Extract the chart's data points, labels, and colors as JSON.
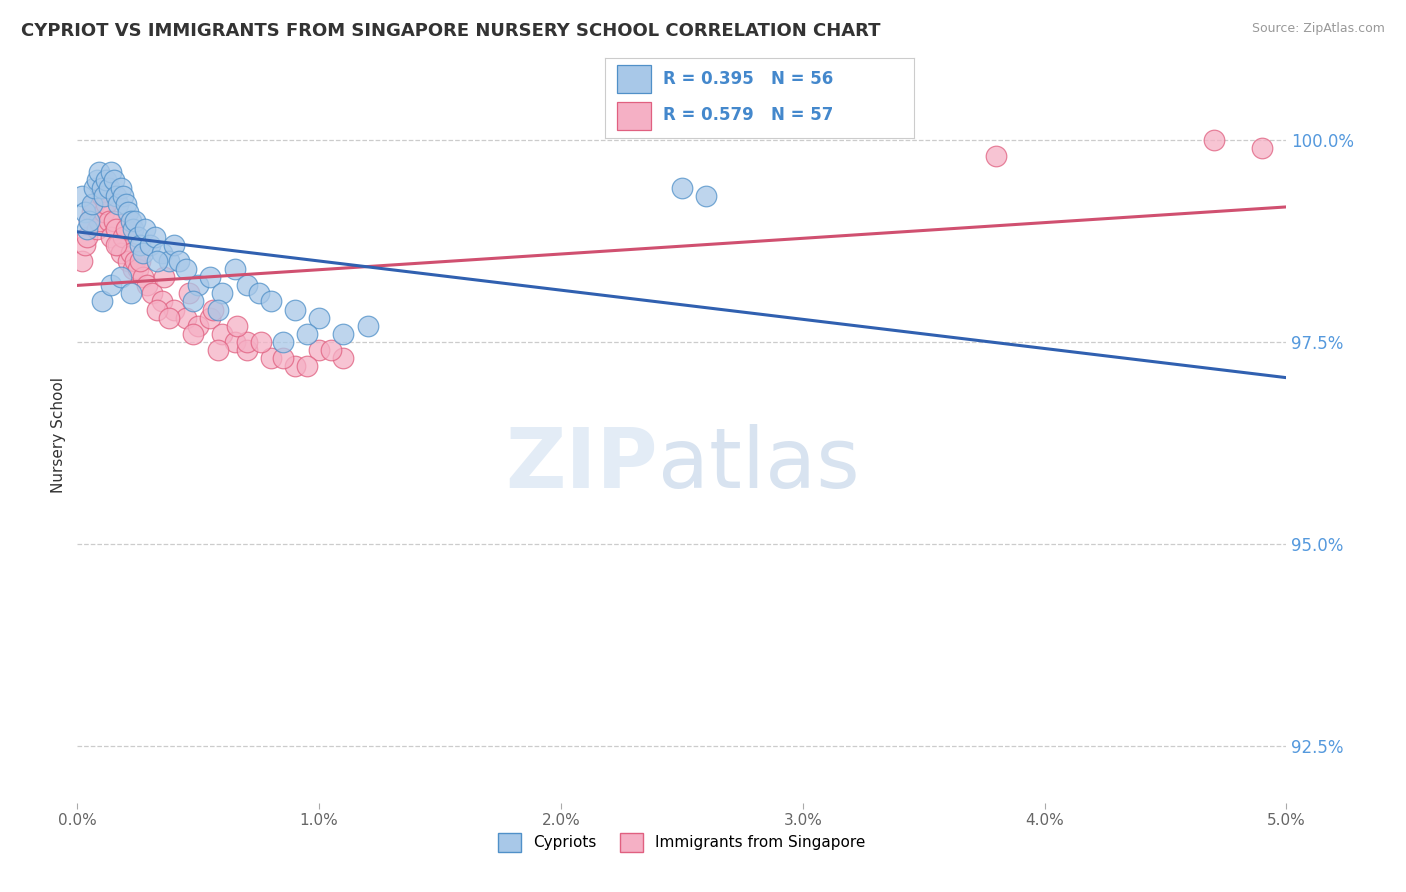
{
  "title": "CYPRIOT VS IMMIGRANTS FROM SINGAPORE NURSERY SCHOOL CORRELATION CHART",
  "source": "Source: ZipAtlas.com",
  "ylabel": "Nursery School",
  "y_ticks": [
    92.5,
    95.0,
    97.5,
    100.0
  ],
  "y_tick_labels": [
    "92.5%",
    "95.0%",
    "97.5%",
    "100.0%"
  ],
  "xmin": 0.0,
  "xmax": 5.0,
  "ymin": 91.8,
  "ymax": 100.9,
  "cypriot_color": "#a8c8e8",
  "singapore_color": "#f5b0c5",
  "cypriot_edge_color": "#5090c8",
  "singapore_edge_color": "#e06080",
  "cypriot_line_color": "#3060b0",
  "singapore_line_color": "#d05070",
  "R_cypriot": 0.395,
  "N_cypriot": 56,
  "R_singapore": 0.579,
  "N_singapore": 57,
  "legend_label_cypriot": "Cypriots",
  "legend_label_singapore": "Immigrants from Singapore",
  "cypriot_x": [
    0.02,
    0.03,
    0.04,
    0.05,
    0.06,
    0.07,
    0.08,
    0.09,
    0.1,
    0.11,
    0.12,
    0.13,
    0.14,
    0.15,
    0.16,
    0.17,
    0.18,
    0.19,
    0.2,
    0.21,
    0.22,
    0.23,
    0.24,
    0.25,
    0.26,
    0.27,
    0.28,
    0.3,
    0.32,
    0.35,
    0.38,
    0.4,
    0.42,
    0.45,
    0.5,
    0.55,
    0.6,
    0.65,
    0.7,
    0.75,
    0.8,
    0.9,
    1.0,
    1.1,
    1.2,
    0.1,
    0.14,
    0.18,
    0.22,
    0.33,
    0.48,
    0.58,
    0.85,
    0.95,
    2.5,
    2.6
  ],
  "cypriot_y": [
    99.3,
    99.1,
    98.9,
    99.0,
    99.2,
    99.4,
    99.5,
    99.6,
    99.4,
    99.3,
    99.5,
    99.4,
    99.6,
    99.5,
    99.3,
    99.2,
    99.4,
    99.3,
    99.2,
    99.1,
    99.0,
    98.9,
    99.0,
    98.8,
    98.7,
    98.6,
    98.9,
    98.7,
    98.8,
    98.6,
    98.5,
    98.7,
    98.5,
    98.4,
    98.2,
    98.3,
    98.1,
    98.4,
    98.2,
    98.1,
    98.0,
    97.9,
    97.8,
    97.6,
    97.7,
    98.0,
    98.2,
    98.3,
    98.1,
    98.5,
    98.0,
    97.9,
    97.5,
    97.6,
    99.4,
    99.3
  ],
  "singapore_x": [
    0.02,
    0.03,
    0.04,
    0.05,
    0.06,
    0.07,
    0.08,
    0.09,
    0.1,
    0.11,
    0.12,
    0.13,
    0.14,
    0.15,
    0.16,
    0.17,
    0.18,
    0.19,
    0.2,
    0.21,
    0.22,
    0.23,
    0.24,
    0.25,
    0.27,
    0.29,
    0.31,
    0.35,
    0.4,
    0.45,
    0.5,
    0.55,
    0.6,
    0.65,
    0.7,
    0.8,
    0.9,
    1.0,
    1.1,
    0.33,
    0.38,
    0.48,
    0.58,
    0.7,
    0.85,
    0.95,
    1.05,
    0.16,
    0.26,
    0.36,
    0.46,
    0.56,
    0.66,
    0.76,
    3.8,
    4.7,
    4.9
  ],
  "singapore_y": [
    98.5,
    98.7,
    98.8,
    99.0,
    99.1,
    99.2,
    98.9,
    99.0,
    99.3,
    99.1,
    99.2,
    99.0,
    98.8,
    99.0,
    98.9,
    98.7,
    98.6,
    98.8,
    98.9,
    98.5,
    98.6,
    98.4,
    98.5,
    98.4,
    98.3,
    98.2,
    98.1,
    98.0,
    97.9,
    97.8,
    97.7,
    97.8,
    97.6,
    97.5,
    97.4,
    97.3,
    97.2,
    97.4,
    97.3,
    97.9,
    97.8,
    97.6,
    97.4,
    97.5,
    97.3,
    97.2,
    97.4,
    98.7,
    98.5,
    98.3,
    98.1,
    97.9,
    97.7,
    97.5,
    99.8,
    100.0,
    99.9
  ]
}
